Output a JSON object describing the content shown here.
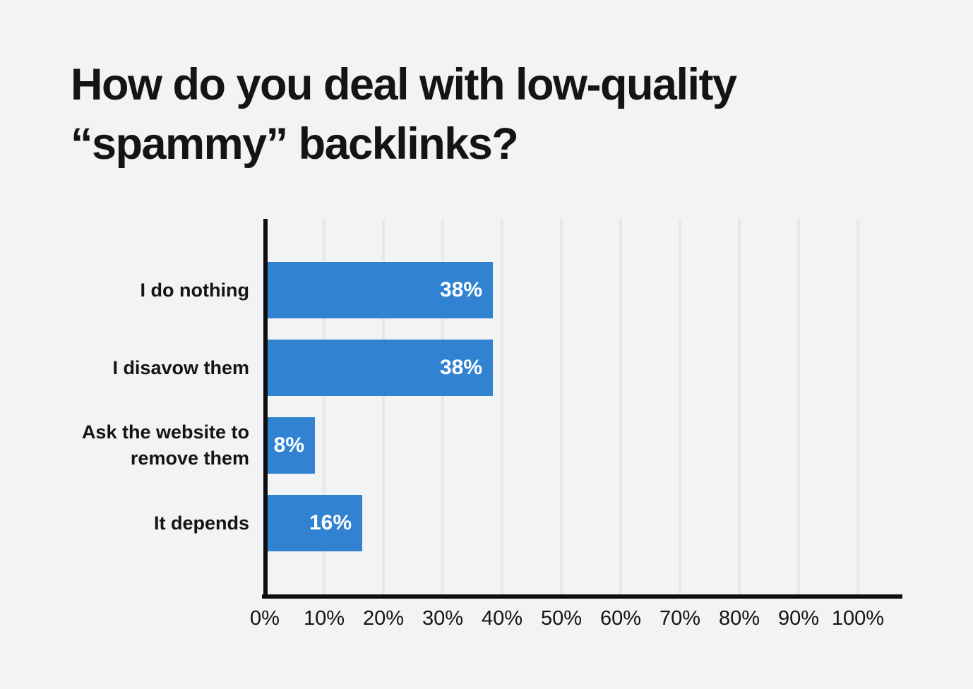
{
  "chart_data": {
    "type": "bar",
    "orientation": "horizontal",
    "title": "How do you deal with low-quality “spammy” backlinks?",
    "categories": [
      "I do nothing",
      "I disavow them",
      "Ask the website to remove them",
      "It depends"
    ],
    "values": [
      38,
      38,
      8,
      16
    ],
    "value_labels": [
      "38%",
      "38%",
      "8%",
      "16%"
    ],
    "x_tick_labels": [
      "0%",
      "10%",
      "20%",
      "30%",
      "40%",
      "50%",
      "60%",
      "70%",
      "80%",
      "90%",
      "100%"
    ],
    "xlim": [
      0,
      100
    ],
    "grid": true,
    "legend": "none",
    "colors": {
      "background": "#f2f3f5",
      "bar": "#3183d1",
      "gridline": "#e7e8ea",
      "axis": "#0d0d0d",
      "text": "#131416",
      "value_label": "#ffffff"
    }
  }
}
